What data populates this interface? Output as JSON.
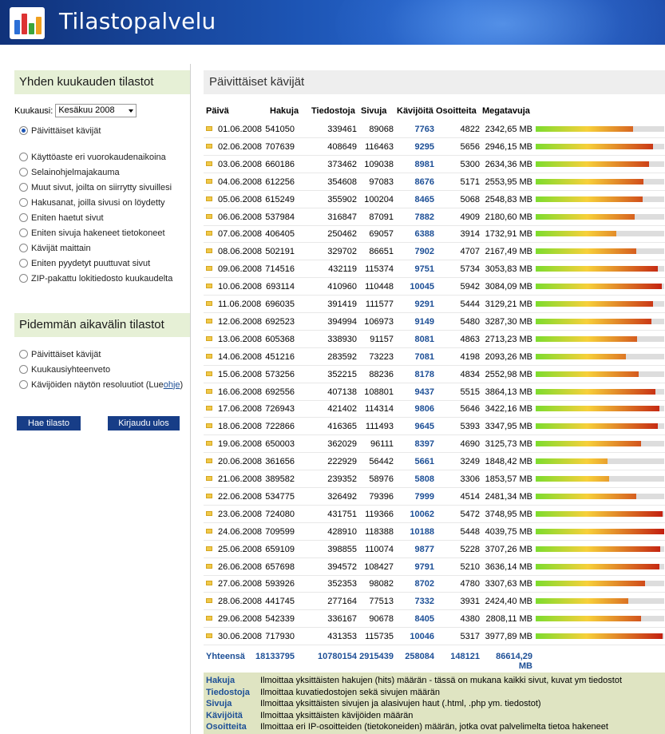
{
  "header": {
    "title": "Tilastopalvelu"
  },
  "sidebar": {
    "monthly_title": "Yhden kuukauden tilastot",
    "month_label": "Kuukausi:",
    "month_value": "Kesäkuu 2008",
    "monthly_options": [
      "Päivittäiset kävijät",
      "Käyttöaste eri vuorokaudenaikoina",
      "Selainohjelmajakauma",
      "Muut sivut, joilta on siirrytty sivuillesi",
      "Hakusanat, joilla sivusi on löydetty",
      "Eniten haetut sivut",
      "Eniten sivuja hakeneet tietokoneet",
      "Kävijät maittain",
      "Eniten pyydetyt puuttuvat sivut",
      "ZIP-pakattu lokitiedosto kuukaudelta"
    ],
    "longer_title": "Pidemmän aikavälin tilastot",
    "longer_options": [
      "Päivittäiset kävijät",
      "Kuukausiyhteenveto",
      "Kävijöiden näytön resoluutiot (Lue "
    ],
    "longer_link": "ohje",
    "longer_close": ")",
    "submit_label": "Hae tilasto",
    "logout_label": "Kirjaudu ulos"
  },
  "main": {
    "title": "Päivittäiset kävijät",
    "headers": [
      "Päivä",
      "Hakuja",
      "Tiedostoja",
      "Sivuja",
      "Kävijöitä",
      "Osoitteita",
      "Megatavuja"
    ],
    "rows": [
      [
        "01.06.2008",
        "541050",
        "339461",
        "89068",
        "7763",
        "4822",
        "2342,65 MB"
      ],
      [
        "02.06.2008",
        "707639",
        "408649",
        "116463",
        "9295",
        "5656",
        "2946,15 MB"
      ],
      [
        "03.06.2008",
        "660186",
        "373462",
        "109038",
        "8981",
        "5300",
        "2634,36 MB"
      ],
      [
        "04.06.2008",
        "612256",
        "354608",
        "97083",
        "8676",
        "5171",
        "2553,95 MB"
      ],
      [
        "05.06.2008",
        "615249",
        "355902",
        "100204",
        "8465",
        "5068",
        "2548,83 MB"
      ],
      [
        "06.06.2008",
        "537984",
        "316847",
        "87091",
        "7882",
        "4909",
        "2180,60 MB"
      ],
      [
        "07.06.2008",
        "406405",
        "250462",
        "69057",
        "6388",
        "3914",
        "1732,91 MB"
      ],
      [
        "08.06.2008",
        "502191",
        "329702",
        "86651",
        "7902",
        "4707",
        "2167,49 MB"
      ],
      [
        "09.06.2008",
        "714516",
        "432119",
        "115374",
        "9751",
        "5734",
        "3053,83 MB"
      ],
      [
        "10.06.2008",
        "693114",
        "410960",
        "110448",
        "10045",
        "5942",
        "3084,09 MB"
      ],
      [
        "11.06.2008",
        "696035",
        "391419",
        "111577",
        "9291",
        "5444",
        "3129,21 MB"
      ],
      [
        "12.06.2008",
        "692523",
        "394994",
        "106973",
        "9149",
        "5480",
        "3287,30 MB"
      ],
      [
        "13.06.2008",
        "605368",
        "338930",
        "91157",
        "8081",
        "4863",
        "2713,23 MB"
      ],
      [
        "14.06.2008",
        "451216",
        "283592",
        "73223",
        "7081",
        "4198",
        "2093,26 MB"
      ],
      [
        "15.06.2008",
        "573256",
        "352215",
        "88236",
        "8178",
        "4834",
        "2552,98 MB"
      ],
      [
        "16.06.2008",
        "692556",
        "407138",
        "108801",
        "9437",
        "5515",
        "3864,13 MB"
      ],
      [
        "17.06.2008",
        "726943",
        "421402",
        "114314",
        "9806",
        "5646",
        "3422,16 MB"
      ],
      [
        "18.06.2008",
        "722866",
        "416365",
        "111493",
        "9645",
        "5393",
        "3347,95 MB"
      ],
      [
        "19.06.2008",
        "650003",
        "362029",
        "96111",
        "8397",
        "4690",
        "3125,73 MB"
      ],
      [
        "20.06.2008",
        "361656",
        "222929",
        "56442",
        "5661",
        "3249",
        "1848,42 MB"
      ],
      [
        "21.06.2008",
        "389582",
        "239352",
        "58976",
        "5808",
        "3306",
        "1853,57 MB"
      ],
      [
        "22.06.2008",
        "534775",
        "326492",
        "79396",
        "7999",
        "4514",
        "2481,34 MB"
      ],
      [
        "23.06.2008",
        "724080",
        "431751",
        "119366",
        "10062",
        "5472",
        "3748,95 MB"
      ],
      [
        "24.06.2008",
        "709599",
        "428910",
        "118388",
        "10188",
        "5448",
        "4039,75 MB"
      ],
      [
        "25.06.2008",
        "659109",
        "398855",
        "110074",
        "9877",
        "5228",
        "3707,26 MB"
      ],
      [
        "26.06.2008",
        "657698",
        "394572",
        "108427",
        "9791",
        "5210",
        "3636,14 MB"
      ],
      [
        "27.06.2008",
        "593926",
        "352353",
        "98082",
        "8702",
        "4780",
        "3307,63 MB"
      ],
      [
        "28.06.2008",
        "441745",
        "277164",
        "77513",
        "7332",
        "3931",
        "2424,40 MB"
      ],
      [
        "29.06.2008",
        "542339",
        "336167",
        "90678",
        "8405",
        "4380",
        "2808,11 MB"
      ],
      [
        "30.06.2008",
        "717930",
        "431353",
        "115735",
        "10046",
        "5317",
        "3977,89 MB"
      ]
    ],
    "bar_fractions": [
      0.76,
      0.91,
      0.88,
      0.84,
      0.83,
      0.77,
      0.63,
      0.78,
      0.95,
      0.98,
      0.91,
      0.9,
      0.79,
      0.7,
      0.8,
      0.93,
      0.96,
      0.95,
      0.82,
      0.56,
      0.57,
      0.78,
      0.99,
      1.0,
      0.97,
      0.96,
      0.85,
      0.72,
      0.82,
      0.99
    ],
    "totals": [
      "Yhteensä",
      "18133795",
      "10780154",
      "2915439",
      "258084",
      "148121",
      "86614,29 MB"
    ]
  },
  "legend": [
    {
      "name": "Hakuja",
      "text": "Ilmoittaa yksittäisten hakujen (hits) määrän - tässä on mukana kaikki sivut, kuvat ym tiedostot"
    },
    {
      "name": "Tiedostoja",
      "text": "Ilmoittaa kuvatiedostojen sekä sivujen määrän"
    },
    {
      "name": "Sivuja",
      "text": "Ilmoittaa yksittäisten sivujen ja alasivujen haut (.html, .php ym. tiedostot)"
    },
    {
      "name": "Kävijöitä",
      "text": "Ilmoittaa yksittäisten kävijöiden määrän"
    },
    {
      "name": "Osoitteita",
      "text": "Ilmoittaa eri IP-osoitteiden (tietokoneiden) määrän, jotka ovat palvelimelta tietoa hakeneet"
    }
  ],
  "colors": {
    "bar_start": "#7ddc2e",
    "bar_mid": "#f7d03a",
    "bar_end": "#c21d10",
    "accent": "#173d87",
    "link": "#1d4f96"
  }
}
